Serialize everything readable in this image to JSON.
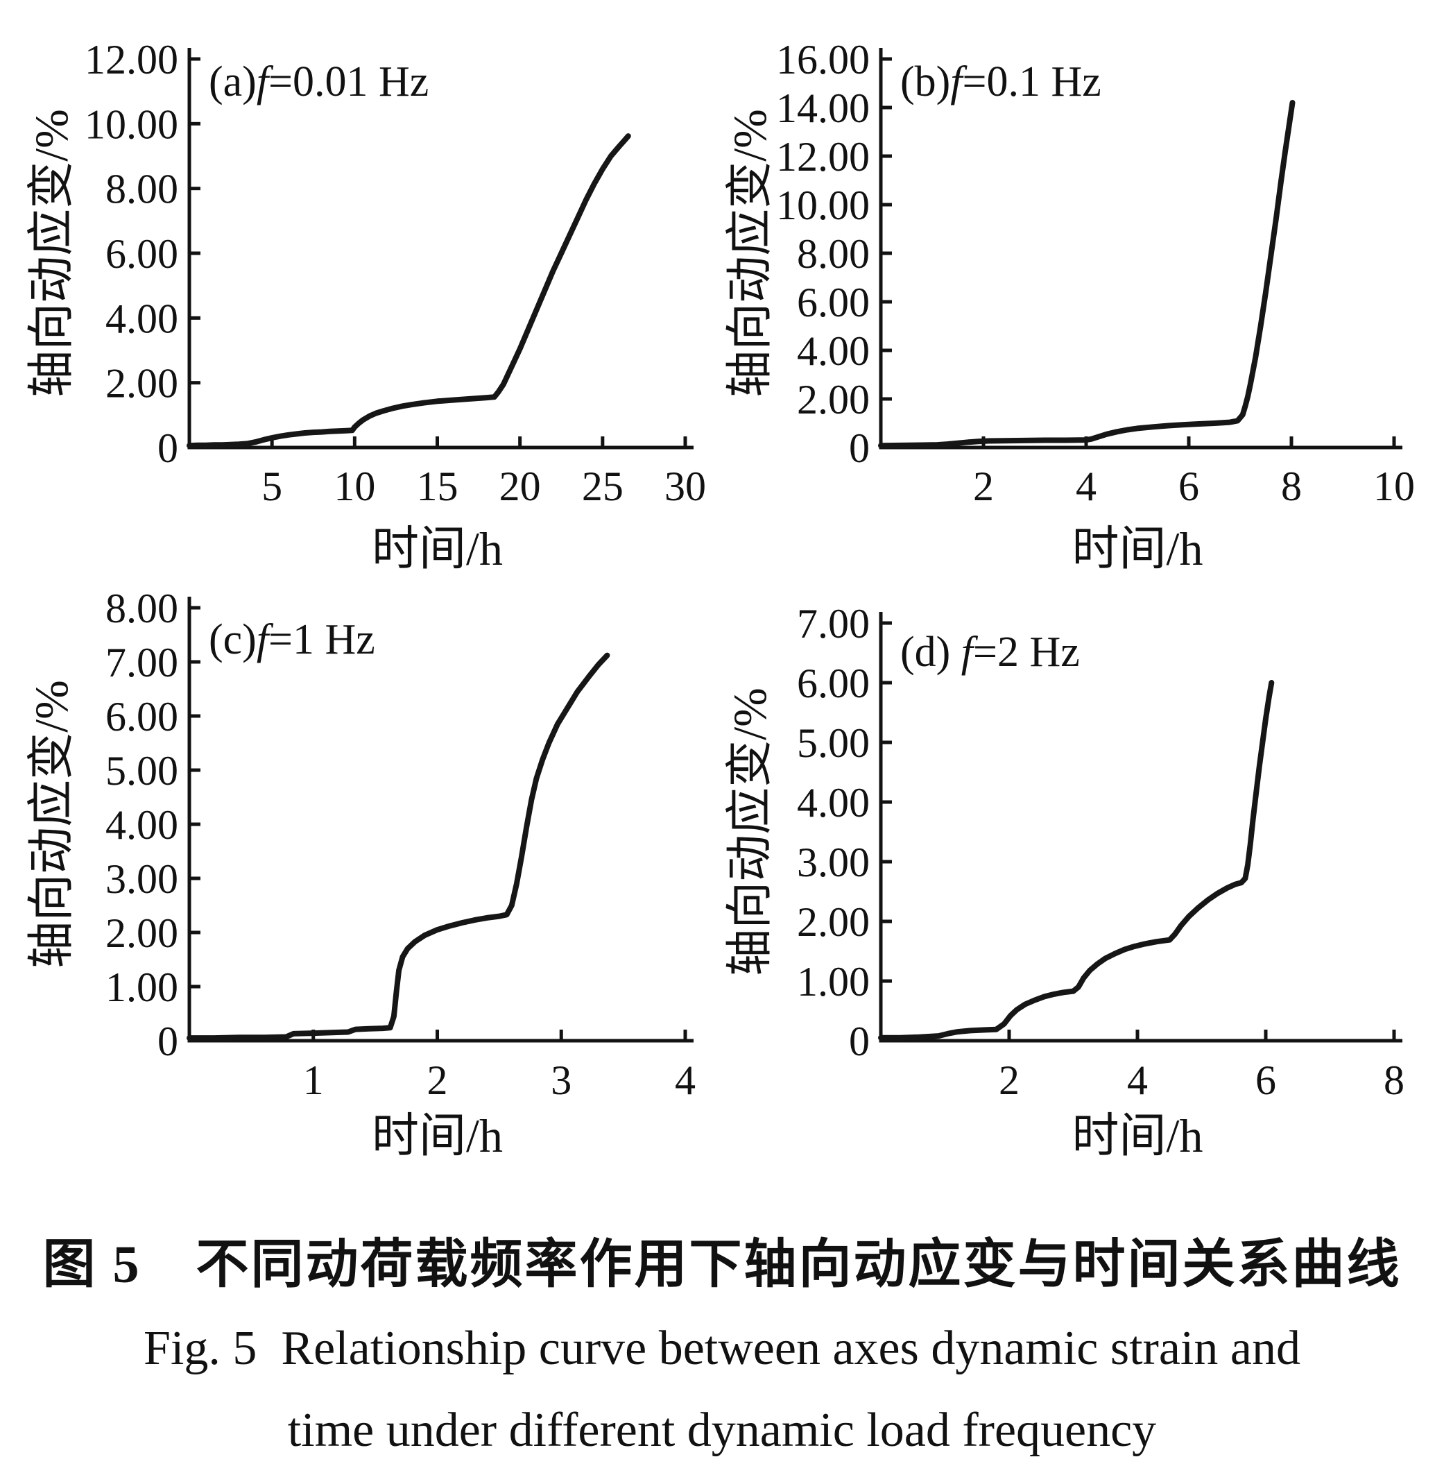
{
  "figure": {
    "caption_zh": "图 5　不同动荷载频率作用下轴向动应变与时间关系曲线",
    "caption_en_1": "Fig. 5  Relationship curve between axes dynamic strain and",
    "caption_en_2": "time under different dynamic load frequency",
    "ink_color": "#121212",
    "background": "#ffffff"
  },
  "chart_data": [
    {
      "id": "a",
      "type": "line",
      "title": {
        "prefix": "(a)",
        "var": "f",
        "rest": "=0.01 Hz"
      },
      "xlabel": "时间/h",
      "ylabel": "轴向动应变/%",
      "xlim": [
        0,
        30
      ],
      "ylim": [
        0,
        12
      ],
      "grid": false,
      "legend": false,
      "xticks": [
        [
          5,
          "5"
        ],
        [
          10,
          "10"
        ],
        [
          15,
          "15"
        ],
        [
          20,
          "20"
        ],
        [
          25,
          "25"
        ],
        [
          30,
          "30"
        ]
      ],
      "yticks": [
        [
          0,
          "0"
        ],
        [
          2,
          "2.00"
        ],
        [
          4,
          "4.00"
        ],
        [
          6,
          "6.00"
        ],
        [
          8,
          "8.00"
        ],
        [
          10,
          "10.00"
        ],
        [
          12,
          "12.00"
        ]
      ],
      "series": [
        {
          "name": "轴向动应变 (axial dynamic strain)",
          "points": [
            [
              0,
              0.06
            ],
            [
              0.5,
              0.07
            ],
            [
              1,
              0.07
            ],
            [
              1.5,
              0.08
            ],
            [
              2,
              0.08
            ],
            [
              2.5,
              0.09
            ],
            [
              3,
              0.1
            ],
            [
              3.5,
              0.12
            ],
            [
              4,
              0.17
            ],
            [
              4.5,
              0.24
            ],
            [
              5,
              0.3
            ],
            [
              5.5,
              0.35
            ],
            [
              6,
              0.39
            ],
            [
              6.5,
              0.42
            ],
            [
              7,
              0.45
            ],
            [
              7.5,
              0.47
            ],
            [
              8,
              0.48
            ],
            [
              8.5,
              0.5
            ],
            [
              9,
              0.51
            ],
            [
              9.5,
              0.52
            ],
            [
              9.85,
              0.53
            ],
            [
              10,
              0.63
            ],
            [
              10.25,
              0.75
            ],
            [
              10.5,
              0.85
            ],
            [
              10.9,
              0.97
            ],
            [
              11.3,
              1.06
            ],
            [
              11.8,
              1.14
            ],
            [
              12.3,
              1.21
            ],
            [
              12.9,
              1.28
            ],
            [
              13.5,
              1.33
            ],
            [
              14.2,
              1.38
            ],
            [
              15,
              1.43
            ],
            [
              15.8,
              1.46
            ],
            [
              16.6,
              1.49
            ],
            [
              17.4,
              1.52
            ],
            [
              18,
              1.54
            ],
            [
              18.45,
              1.56
            ],
            [
              18.7,
              1.72
            ],
            [
              19,
              1.95
            ],
            [
              19.5,
              2.5
            ],
            [
              20,
              3.05
            ],
            [
              20.5,
              3.65
            ],
            [
              21,
              4.25
            ],
            [
              21.5,
              4.85
            ],
            [
              22,
              5.45
            ],
            [
              22.5,
              6.0
            ],
            [
              23,
              6.55
            ],
            [
              23.5,
              7.1
            ],
            [
              24,
              7.65
            ],
            [
              24.5,
              8.15
            ],
            [
              25,
              8.6
            ],
            [
              25.5,
              9.0
            ],
            [
              26,
              9.3
            ],
            [
              26.35,
              9.5
            ],
            [
              26.55,
              9.62
            ]
          ]
        }
      ]
    },
    {
      "id": "b",
      "type": "line",
      "title": {
        "prefix": "(b)",
        "var": "f",
        "rest": "=0.1 Hz"
      },
      "xlabel": "时间/h",
      "ylabel": "轴向动应变/%",
      "xlim": [
        0,
        10
      ],
      "ylim": [
        0,
        16
      ],
      "grid": false,
      "legend": false,
      "xticks": [
        [
          2,
          "2"
        ],
        [
          4,
          "4"
        ],
        [
          6,
          "6"
        ],
        [
          8,
          "8"
        ],
        [
          10,
          "10"
        ]
      ],
      "yticks": [
        [
          0,
          "0"
        ],
        [
          2,
          "2.00"
        ],
        [
          4,
          "4.00"
        ],
        [
          6,
          "6.00"
        ],
        [
          8,
          "8.00"
        ],
        [
          10,
          "10.00"
        ],
        [
          12,
          "12.00"
        ],
        [
          14,
          "14.00"
        ],
        [
          16,
          "16.00"
        ]
      ],
      "series": [
        {
          "name": "轴向动应变 (axial dynamic strain)",
          "points": [
            [
              0,
              0.08
            ],
            [
              0.4,
              0.09
            ],
            [
              0.8,
              0.1
            ],
            [
              1.1,
              0.11
            ],
            [
              1.3,
              0.14
            ],
            [
              1.5,
              0.18
            ],
            [
              1.7,
              0.22
            ],
            [
              1.9,
              0.25
            ],
            [
              2.1,
              0.27
            ],
            [
              2.4,
              0.28
            ],
            [
              2.8,
              0.29
            ],
            [
              3.2,
              0.3
            ],
            [
              3.6,
              0.3
            ],
            [
              4,
              0.31
            ],
            [
              4.1,
              0.35
            ],
            [
              4.25,
              0.45
            ],
            [
              4.4,
              0.55
            ],
            [
              4.6,
              0.65
            ],
            [
              4.8,
              0.73
            ],
            [
              5,
              0.79
            ],
            [
              5.3,
              0.85
            ],
            [
              5.6,
              0.9
            ],
            [
              5.9,
              0.94
            ],
            [
              6.2,
              0.97
            ],
            [
              6.5,
              1.0
            ],
            [
              6.8,
              1.04
            ],
            [
              6.95,
              1.1
            ],
            [
              7.05,
              1.35
            ],
            [
              7.1,
              1.7
            ],
            [
              7.15,
              2.1
            ],
            [
              7.2,
              2.6
            ],
            [
              7.3,
              3.7
            ],
            [
              7.4,
              5.0
            ],
            [
              7.5,
              6.4
            ],
            [
              7.6,
              7.9
            ],
            [
              7.7,
              9.4
            ],
            [
              7.8,
              11.0
            ],
            [
              7.88,
              12.2
            ],
            [
              7.95,
              13.2
            ],
            [
              8.02,
              14.2
            ]
          ]
        }
      ]
    },
    {
      "id": "c",
      "type": "line",
      "title": {
        "prefix": "(c)",
        "var": "f",
        "rest": "=1 Hz"
      },
      "xlabel": "时间/h",
      "ylabel": "轴向动应变/%",
      "xlim": [
        0,
        4
      ],
      "ylim": [
        0,
        8
      ],
      "grid": false,
      "legend": false,
      "xticks": [
        [
          1,
          "1"
        ],
        [
          2,
          "2"
        ],
        [
          3,
          "3"
        ],
        [
          4,
          "4"
        ]
      ],
      "yticks": [
        [
          0,
          "0"
        ],
        [
          1,
          "1.00"
        ],
        [
          2,
          "2.00"
        ],
        [
          3,
          "3.00"
        ],
        [
          4,
          "4.00"
        ],
        [
          5,
          "5.00"
        ],
        [
          6,
          "6.00"
        ],
        [
          7,
          "7.00"
        ],
        [
          8,
          "8.00"
        ]
      ],
      "series": [
        {
          "name": "轴向动应变 (axial dynamic strain)",
          "points": [
            [
              0,
              0.05
            ],
            [
              0.2,
              0.05
            ],
            [
              0.4,
              0.06
            ],
            [
              0.6,
              0.06
            ],
            [
              0.78,
              0.07
            ],
            [
              0.84,
              0.13
            ],
            [
              1,
              0.14
            ],
            [
              1.15,
              0.15
            ],
            [
              1.28,
              0.16
            ],
            [
              1.34,
              0.21
            ],
            [
              1.45,
              0.22
            ],
            [
              1.56,
              0.23
            ],
            [
              1.62,
              0.24
            ],
            [
              1.65,
              0.45
            ],
            [
              1.67,
              0.9
            ],
            [
              1.69,
              1.3
            ],
            [
              1.72,
              1.55
            ],
            [
              1.76,
              1.7
            ],
            [
              1.82,
              1.83
            ],
            [
              1.9,
              1.95
            ],
            [
              2,
              2.05
            ],
            [
              2.1,
              2.12
            ],
            [
              2.2,
              2.18
            ],
            [
              2.3,
              2.23
            ],
            [
              2.4,
              2.27
            ],
            [
              2.5,
              2.3
            ],
            [
              2.56,
              2.33
            ],
            [
              2.6,
              2.5
            ],
            [
              2.64,
              2.9
            ],
            [
              2.68,
              3.4
            ],
            [
              2.72,
              3.95
            ],
            [
              2.76,
              4.45
            ],
            [
              2.8,
              4.85
            ],
            [
              2.85,
              5.2
            ],
            [
              2.9,
              5.5
            ],
            [
              2.97,
              5.85
            ],
            [
              3.05,
              6.15
            ],
            [
              3.13,
              6.45
            ],
            [
              3.22,
              6.72
            ],
            [
              3.3,
              6.95
            ],
            [
              3.37,
              7.12
            ]
          ]
        }
      ]
    },
    {
      "id": "d",
      "type": "line",
      "title": {
        "prefix": "(d) ",
        "var": "f",
        "rest": "=2 Hz"
      },
      "xlabel": "时间/h",
      "ylabel": "轴向动应变/%",
      "xlim": [
        0,
        8
      ],
      "ylim": [
        0,
        7
      ],
      "grid": false,
      "legend": false,
      "xticks": [
        [
          2,
          "2"
        ],
        [
          4,
          "4"
        ],
        [
          6,
          "6"
        ],
        [
          8,
          "8"
        ]
      ],
      "yticks": [
        [
          0,
          "0"
        ],
        [
          1,
          "1.00"
        ],
        [
          2,
          "2.00"
        ],
        [
          3,
          "3.00"
        ],
        [
          4,
          "4.00"
        ],
        [
          5,
          "5.00"
        ],
        [
          6,
          "6.00"
        ],
        [
          7,
          "7.00"
        ]
      ],
      "series": [
        {
          "name": "轴向动应变 (axial dynamic strain)",
          "points": [
            [
              0,
              0.05
            ],
            [
              0.3,
              0.05
            ],
            [
              0.6,
              0.06
            ],
            [
              0.9,
              0.08
            ],
            [
              1.05,
              0.12
            ],
            [
              1.2,
              0.15
            ],
            [
              1.4,
              0.17
            ],
            [
              1.6,
              0.18
            ],
            [
              1.8,
              0.19
            ],
            [
              1.92,
              0.28
            ],
            [
              2.02,
              0.42
            ],
            [
              2.12,
              0.52
            ],
            [
              2.25,
              0.61
            ],
            [
              2.4,
              0.68
            ],
            [
              2.55,
              0.74
            ],
            [
              2.7,
              0.78
            ],
            [
              2.85,
              0.81
            ],
            [
              3,
              0.83
            ],
            [
              3.08,
              0.9
            ],
            [
              3.16,
              1.05
            ],
            [
              3.26,
              1.18
            ],
            [
              3.38,
              1.29
            ],
            [
              3.5,
              1.38
            ],
            [
              3.65,
              1.46
            ],
            [
              3.8,
              1.53
            ],
            [
              3.95,
              1.58
            ],
            [
              4.1,
              1.62
            ],
            [
              4.3,
              1.66
            ],
            [
              4.5,
              1.69
            ],
            [
              4.58,
              1.78
            ],
            [
              4.68,
              1.93
            ],
            [
              4.8,
              2.08
            ],
            [
              4.95,
              2.23
            ],
            [
              5.1,
              2.36
            ],
            [
              5.25,
              2.47
            ],
            [
              5.4,
              2.56
            ],
            [
              5.52,
              2.62
            ],
            [
              5.62,
              2.65
            ],
            [
              5.68,
              2.72
            ],
            [
              5.72,
              2.95
            ],
            [
              5.76,
              3.3
            ],
            [
              5.8,
              3.7
            ],
            [
              5.85,
              4.15
            ],
            [
              5.9,
              4.6
            ],
            [
              5.95,
              5.0
            ],
            [
              6,
              5.4
            ],
            [
              6.05,
              5.75
            ],
            [
              6.09,
              6.0
            ]
          ]
        }
      ]
    }
  ]
}
